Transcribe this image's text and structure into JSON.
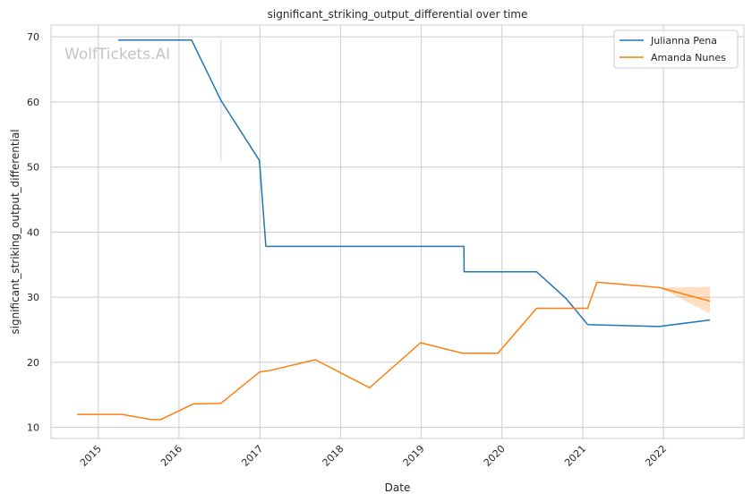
{
  "chart_data": {
    "type": "line",
    "title": "significant_striking_output_differential over time",
    "xlabel": "Date",
    "ylabel": "significant_striking_output_differential",
    "watermark": "WolfTickets.AI",
    "x_ticks": [
      "2015",
      "2016",
      "2017",
      "2018",
      "2019",
      "2020",
      "2021",
      "2022"
    ],
    "y_ticks": [
      10,
      20,
      30,
      40,
      50,
      60,
      70
    ],
    "xlim": [
      "2014-06-01",
      "2022-12-31"
    ],
    "ylim": [
      8.3,
      71.8
    ],
    "grid": true,
    "legend_position": "top-right",
    "series": [
      {
        "name": "Julianna Pena",
        "color": "#1f77b4",
        "points": [
          [
            "2015-04-01",
            69.5
          ],
          [
            "2016-02-27",
            69.5
          ],
          [
            "2016-07-09",
            60.2
          ],
          [
            "2016-12-30",
            51.0
          ],
          [
            "2017-01-28",
            37.8
          ],
          [
            "2019-07-13",
            37.8
          ],
          [
            "2019-07-14",
            33.9
          ],
          [
            "2020-06-06",
            33.9
          ],
          [
            "2020-10-17",
            29.8
          ],
          [
            "2021-01-23",
            25.8
          ],
          [
            "2021-12-11",
            25.5
          ],
          [
            "2022-07-30",
            26.5
          ]
        ],
        "error_band": {
          "x": "2016-07-09",
          "low": 51.0,
          "high": 69.5
        }
      },
      {
        "name": "Amanda Nunes",
        "color": "#ff7f0e",
        "points": [
          [
            "2014-09-27",
            12.0
          ],
          [
            "2015-04-18",
            12.0
          ],
          [
            "2015-08-29",
            11.2
          ],
          [
            "2015-10-10",
            11.2
          ],
          [
            "2016-03-05",
            13.6
          ],
          [
            "2016-07-09",
            13.7
          ],
          [
            "2016-12-30",
            18.5
          ],
          [
            "2017-02-10",
            18.7
          ],
          [
            "2017-09-09",
            20.4
          ],
          [
            "2018-05-12",
            16.1
          ],
          [
            "2018-12-29",
            23.0
          ],
          [
            "2019-07-06",
            21.4
          ],
          [
            "2019-12-14",
            21.4
          ],
          [
            "2020-06-06",
            28.3
          ],
          [
            "2021-01-23",
            28.3
          ],
          [
            "2021-03-06",
            32.3
          ],
          [
            "2021-12-11",
            31.5
          ],
          [
            "2022-07-30",
            29.4
          ]
        ],
        "error_band": {
          "x": [
            "2021-12-11",
            "2022-07-30"
          ],
          "low": [
            31.5,
            27.5
          ],
          "high": [
            31.5,
            31.6
          ]
        }
      }
    ]
  }
}
